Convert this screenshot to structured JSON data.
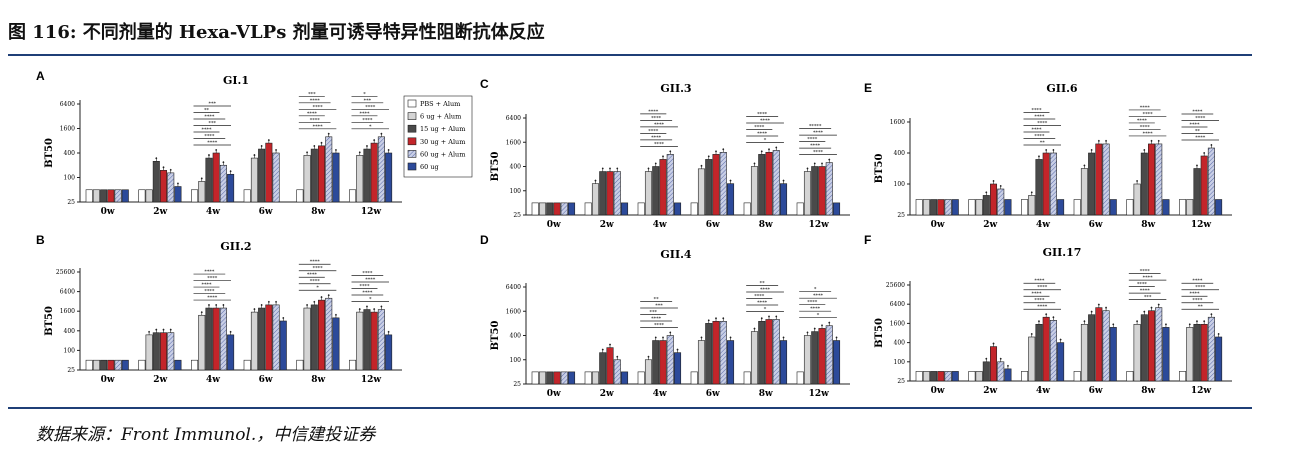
{
  "header": {
    "title": "图 116: 不同剂量的 Hexa-VLPs 剂量可诱导特异性阻断抗体反应"
  },
  "footer": {
    "source": "数据来源：Front Immunol.，中信建投证券"
  },
  "legend": {
    "entries": [
      "PBS + Alum",
      "6 ug + Alum",
      "15 ug + Alum",
      "30 ug + Alum",
      "60 ug + Alum",
      "60 ug"
    ],
    "colors": [
      "#ffffff",
      "#d4d4d4",
      "#4a4a4a",
      "#c3252a",
      "#c9cfe6",
      "#2c4a9a"
    ],
    "patterns": [
      "solid",
      "solid",
      "solid",
      "solid",
      "hatch",
      "solid"
    ]
  },
  "chart_data": [
    {
      "letter": "A",
      "title": "GI.1",
      "type": "bar",
      "ylabel": "BT50",
      "yticks": [
        "6400",
        "1600",
        "400",
        "100",
        "25"
      ],
      "ylim": [
        25,
        6400
      ],
      "yscale": "log4",
      "categories": [
        "0w",
        "2w",
        "4w",
        "6w",
        "8w",
        "12w"
      ],
      "values": [
        [
          50,
          50,
          50,
          50,
          50,
          50
        ],
        [
          50,
          50,
          250,
          150,
          130,
          60
        ],
        [
          50,
          80,
          300,
          400,
          200,
          120
        ],
        [
          50,
          300,
          500,
          700,
          400,
          0
        ],
        [
          50,
          350,
          500,
          600,
          1000,
          400
        ],
        [
          50,
          350,
          500,
          700,
          1000,
          400
        ]
      ],
      "signif": {
        "4w": [
          "****",
          "****",
          "****",
          "***",
          "****",
          "**",
          "***"
        ],
        "8w": [
          "****",
          "****",
          "****",
          "****",
          "****",
          "***"
        ],
        "12w": [
          "*",
          "****",
          "****",
          "****",
          "***",
          "*"
        ]
      }
    },
    {
      "letter": "B",
      "title": "GII.2",
      "type": "bar",
      "ylabel": "BT50",
      "yticks": [
        "25600",
        "6400",
        "1600",
        "400",
        "100",
        "25"
      ],
      "ylim": [
        25,
        25600
      ],
      "yscale": "log4",
      "categories": [
        "0w",
        "2w",
        "4w",
        "6w",
        "8w",
        "12w"
      ],
      "values": [
        [
          50,
          50,
          50,
          50,
          50,
          50
        ],
        [
          50,
          300,
          350,
          350,
          350,
          50
        ],
        [
          50,
          1200,
          2000,
          2000,
          2000,
          300
        ],
        [
          50,
          1500,
          2000,
          2500,
          2500,
          800
        ],
        [
          50,
          2000,
          2500,
          3500,
          4000,
          1000
        ],
        [
          50,
          1500,
          1800,
          1500,
          1800,
          300
        ]
      ],
      "signif": {
        "4w": [
          "****",
          "****",
          "****",
          "****",
          "****"
        ],
        "8w": [
          "*",
          "****",
          "****",
          "****",
          "****"
        ],
        "12w": [
          "*",
          "****",
          "****",
          "****",
          "****"
        ]
      }
    },
    {
      "letter": "C",
      "title": "GII.3",
      "type": "bar",
      "ylabel": "BT50",
      "yticks": [
        "6400",
        "1600",
        "400",
        "100",
        "25"
      ],
      "ylim": [
        25,
        6400
      ],
      "yscale": "log4",
      "categories": [
        "0w",
        "2w",
        "4w",
        "6w",
        "8w",
        "12w"
      ],
      "values": [
        [
          50,
          50,
          50,
          50,
          50,
          50
        ],
        [
          50,
          150,
          300,
          300,
          300,
          50
        ],
        [
          50,
          300,
          400,
          600,
          800,
          50
        ],
        [
          50,
          350,
          600,
          800,
          900,
          150
        ],
        [
          50,
          400,
          800,
          900,
          1000,
          150
        ],
        [
          50,
          300,
          400,
          400,
          500,
          50
        ]
      ],
      "signif": {
        "4w": [
          "****",
          "****",
          "****",
          "****",
          "****",
          "****"
        ],
        "8w": [
          "*",
          "****",
          "****",
          "****",
          "****"
        ],
        "12w": [
          "****",
          "****",
          "****",
          "****",
          "*****"
        ]
      }
    },
    {
      "letter": "D",
      "title": "GII.4",
      "type": "bar",
      "ylabel": "BT50",
      "yticks": [
        "6400",
        "1600",
        "400",
        "100",
        "25"
      ],
      "ylim": [
        25,
        6400
      ],
      "yscale": "log4",
      "categories": [
        "0w",
        "2w",
        "4w",
        "6w",
        "8w",
        "12w"
      ],
      "values": [
        [
          50,
          50,
          50,
          50,
          50,
          50
        ],
        [
          50,
          50,
          150,
          200,
          100,
          50
        ],
        [
          50,
          100,
          300,
          300,
          400,
          150
        ],
        [
          50,
          300,
          800,
          900,
          900,
          300
        ],
        [
          50,
          500,
          900,
          1000,
          1000,
          300
        ],
        [
          50,
          400,
          500,
          600,
          700,
          300
        ]
      ],
      "signif": {
        "4w": [
          "****",
          "****",
          "***",
          "***",
          "**"
        ],
        "8w": [
          "*",
          "****",
          "****",
          "****",
          "**"
        ],
        "12w": [
          "*",
          "****",
          "****",
          "****",
          "*"
        ]
      }
    },
    {
      "letter": "E",
      "title": "GII.6",
      "type": "bar",
      "ylabel": "BT50",
      "yticks": [
        "1600",
        "400",
        "100",
        "25"
      ],
      "ylim": [
        25,
        1600
      ],
      "yscale": "log4",
      "categories": [
        "0w",
        "2w",
        "4w",
        "6w",
        "8w",
        "12w"
      ],
      "values": [
        [
          50,
          50,
          50,
          50,
          50,
          50
        ],
        [
          50,
          50,
          60,
          100,
          80,
          50
        ],
        [
          50,
          60,
          300,
          400,
          400,
          50
        ],
        [
          50,
          200,
          400,
          600,
          600,
          50
        ],
        [
          50,
          100,
          400,
          600,
          600,
          50
        ],
        [
          50,
          50,
          200,
          350,
          500,
          50
        ]
      ],
      "signif": {
        "4w": [
          "**",
          "****",
          "****",
          "****",
          "****",
          "****"
        ],
        "8w": [
          "****",
          "****",
          "****",
          "****",
          "****"
        ],
        "12w": [
          "****",
          "**",
          "****",
          "****",
          "****"
        ]
      }
    },
    {
      "letter": "F",
      "title": "GII.17",
      "type": "bar",
      "ylabel": "BT50",
      "yticks": [
        "25600",
        "6400",
        "1600",
        "400",
        "100",
        "25"
      ],
      "ylim": [
        25,
        25600
      ],
      "yscale": "log4",
      "categories": [
        "0w",
        "2w",
        "4w",
        "6w",
        "8w",
        "12w"
      ],
      "values": [
        [
          50,
          50,
          50,
          50,
          50,
          50
        ],
        [
          50,
          50,
          100,
          300,
          100,
          60
        ],
        [
          50,
          600,
          1500,
          2500,
          2000,
          400
        ],
        [
          50,
          1500,
          3000,
          5000,
          4000,
          1200
        ],
        [
          50,
          1500,
          3000,
          4000,
          5000,
          1200
        ],
        [
          50,
          1200,
          1500,
          1500,
          2500,
          600
        ]
      ],
      "signif": {
        "4w": [
          "****",
          "****",
          "****",
          "****",
          "****"
        ],
        "8w": [
          "***",
          "****",
          "****",
          "****",
          "****"
        ],
        "12w": [
          "**",
          "****",
          "****",
          "****",
          "****"
        ]
      }
    }
  ]
}
